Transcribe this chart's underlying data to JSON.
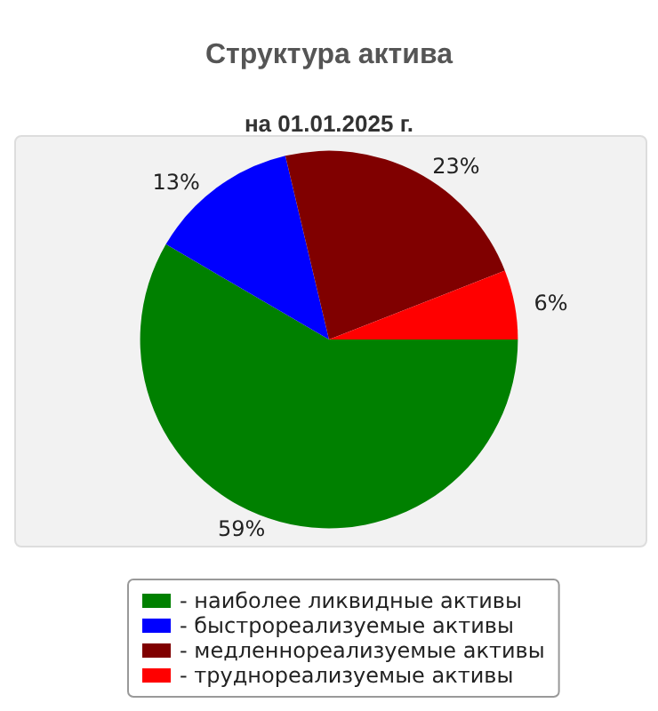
{
  "chart_data": {
    "type": "pie",
    "title": "Структура актива",
    "subtitle": "на 01.01.2025 г.",
    "categories": [
      "- наиболее ликвидные активы",
      "- быстрореализуемые активы",
      "- медленнореализуемые активы",
      "- труднореализуемые активы"
    ],
    "values": [
      59,
      13,
      23,
      6
    ],
    "colors": [
      "#008000",
      "#0000ff",
      "#800000",
      "#ff0000"
    ],
    "value_labels": [
      "59%",
      "13%",
      "23%",
      "6%"
    ],
    "legend": "bottom"
  }
}
